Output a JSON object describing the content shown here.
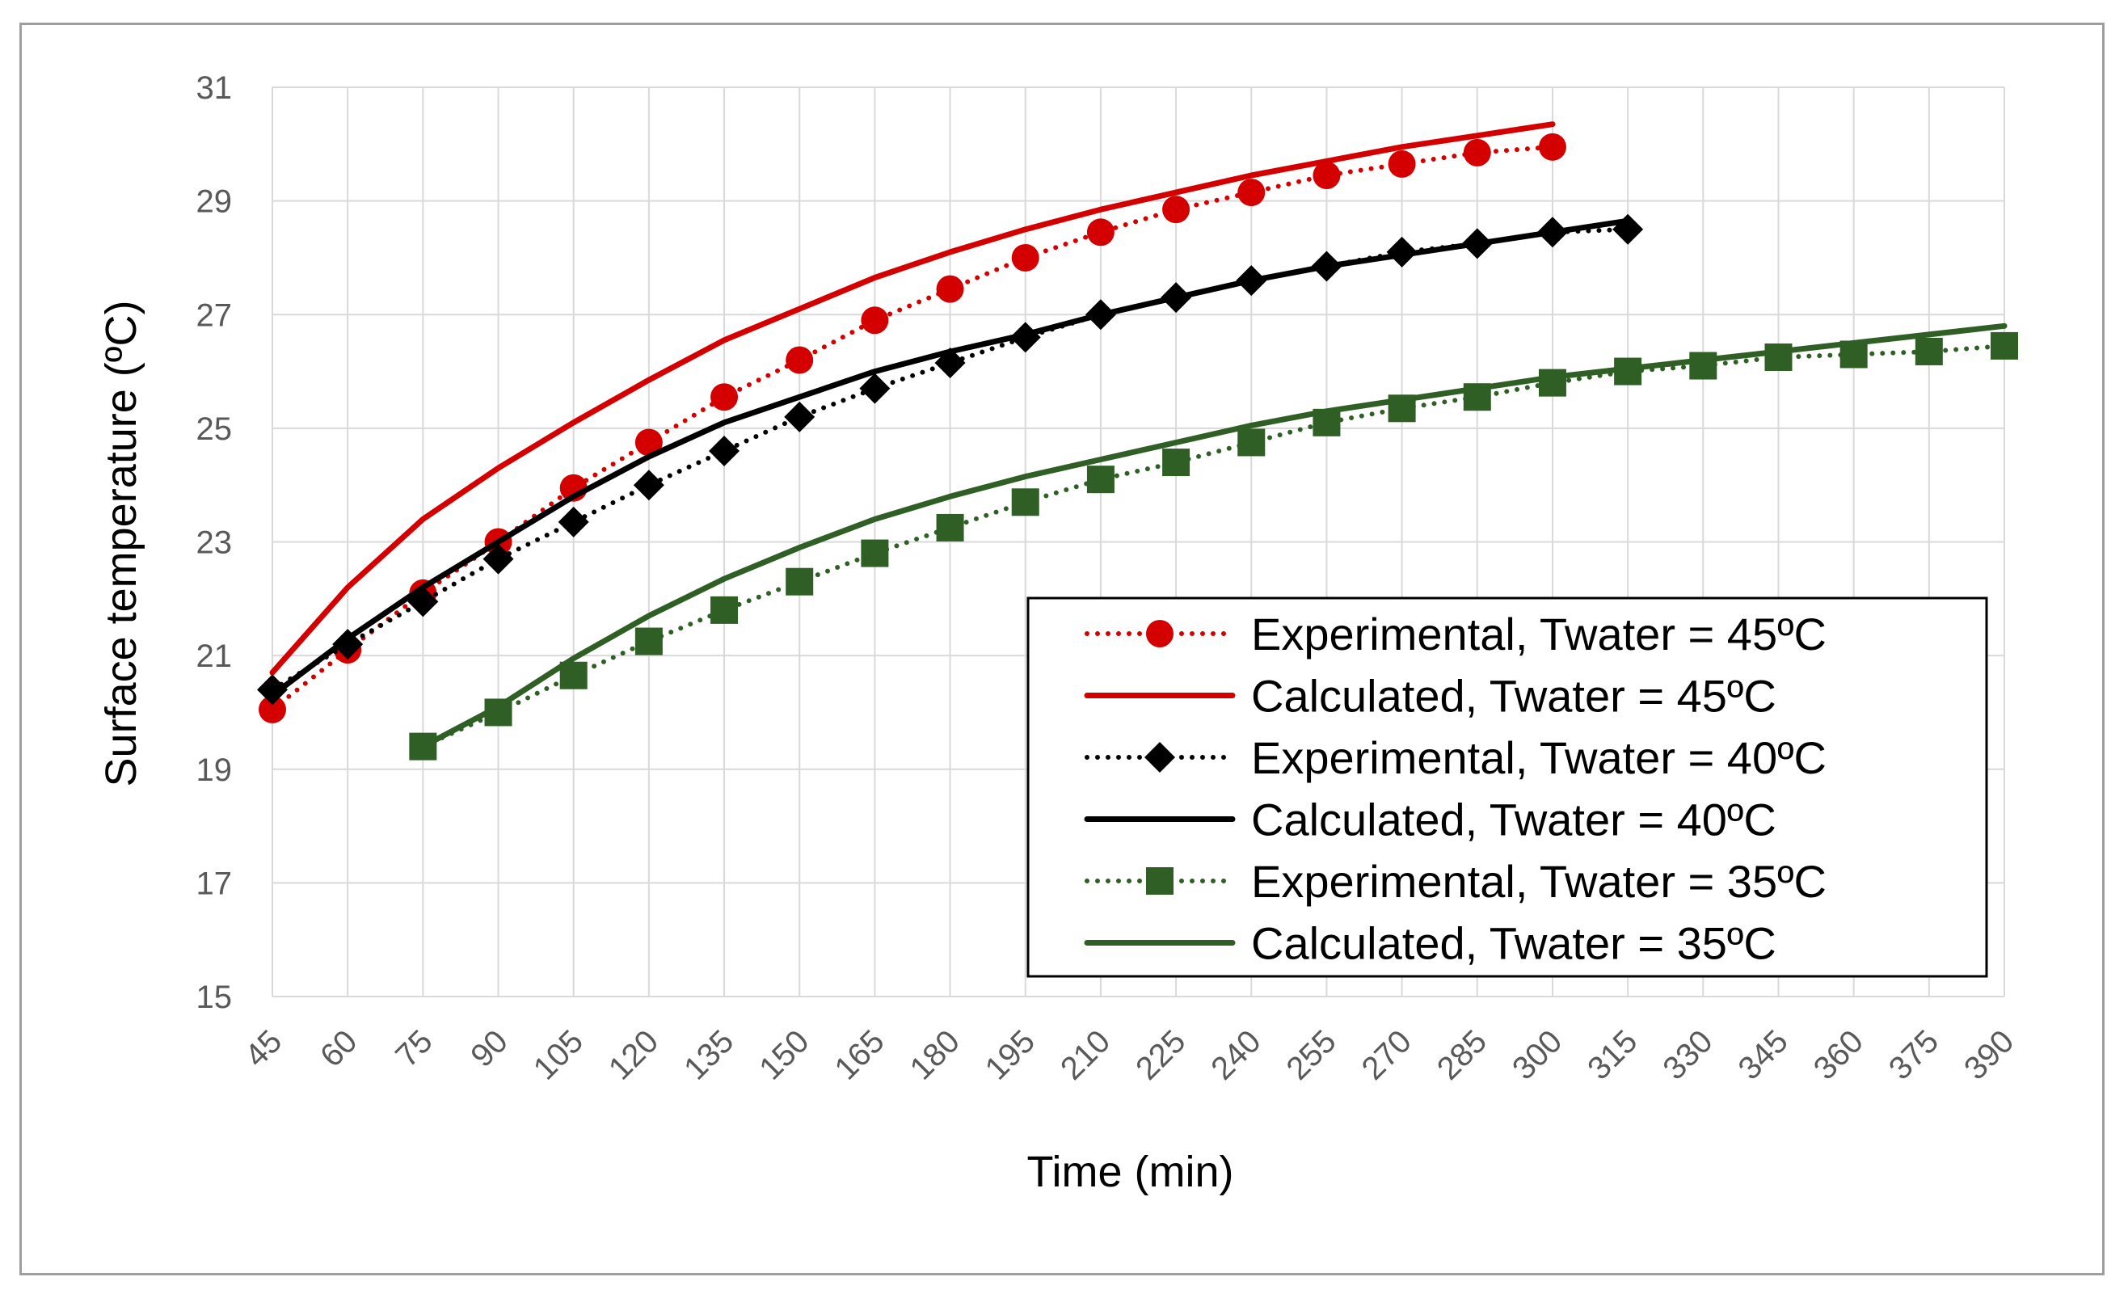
{
  "colors": {
    "red": "#d40000",
    "black": "#000000",
    "green": "#2f5f25",
    "grid": "#d9d9d9",
    "frame": "#9e9e9e"
  },
  "chart_data": {
    "type": "line",
    "title": "",
    "xlabel": "Time (min)",
    "ylabel": "Surface temperature (ºC)",
    "x_ticks": [
      45,
      60,
      75,
      90,
      105,
      120,
      135,
      150,
      165,
      180,
      195,
      210,
      225,
      240,
      255,
      270,
      285,
      300,
      315,
      330,
      345,
      360,
      375,
      390
    ],
    "y_ticks": [
      15,
      17,
      19,
      21,
      23,
      25,
      27,
      29,
      31
    ],
    "xlim": [
      45,
      390
    ],
    "ylim": [
      15,
      31
    ],
    "grid": true,
    "legend_position": "bottom-right",
    "series": [
      {
        "name": "Experimental, Twater = 45ºC",
        "style": "dotted",
        "marker": "circle",
        "color": "#d40000",
        "x": [
          45,
          60,
          75,
          90,
          105,
          120,
          135,
          150,
          165,
          180,
          195,
          210,
          225,
          240,
          255,
          270,
          285,
          300
        ],
        "y": [
          20.05,
          21.1,
          22.1,
          23.0,
          23.95,
          24.75,
          25.55,
          26.2,
          26.9,
          27.45,
          28.0,
          28.45,
          28.85,
          29.15,
          29.45,
          29.65,
          29.85,
          29.95
        ]
      },
      {
        "name": "Calculated, Twater = 45ºC",
        "style": "solid",
        "marker": "none",
        "color": "#d40000",
        "x": [
          45,
          60,
          75,
          90,
          105,
          120,
          135,
          150,
          165,
          180,
          195,
          210,
          225,
          240,
          255,
          270,
          285,
          300
        ],
        "y": [
          20.7,
          22.2,
          23.4,
          24.3,
          25.1,
          25.85,
          26.55,
          27.1,
          27.65,
          28.1,
          28.5,
          28.85,
          29.15,
          29.45,
          29.7,
          29.95,
          30.15,
          30.35
        ]
      },
      {
        "name": "Experimental, Twater = 40ºC",
        "style": "dotted",
        "marker": "diamond",
        "color": "#000000",
        "x": [
          45,
          60,
          75,
          90,
          105,
          120,
          135,
          150,
          165,
          180,
          195,
          210,
          225,
          240,
          255,
          270,
          285,
          300,
          315
        ],
        "y": [
          20.4,
          21.2,
          21.95,
          22.7,
          23.35,
          24.0,
          24.6,
          25.2,
          25.7,
          26.15,
          26.6,
          27.0,
          27.3,
          27.6,
          27.85,
          28.1,
          28.25,
          28.45,
          28.5
        ]
      },
      {
        "name": "Calculated, Twater = 40ºC",
        "style": "solid",
        "marker": "none",
        "color": "#000000",
        "x": [
          45,
          60,
          75,
          90,
          105,
          120,
          135,
          150,
          165,
          180,
          195,
          210,
          225,
          240,
          255,
          270,
          285,
          300,
          315
        ],
        "y": [
          20.3,
          21.3,
          22.2,
          23.0,
          23.8,
          24.5,
          25.1,
          25.55,
          26.0,
          26.35,
          26.65,
          27.0,
          27.3,
          27.6,
          27.85,
          28.05,
          28.25,
          28.45,
          28.65
        ]
      },
      {
        "name": "Experimental, Twater = 35ºC",
        "style": "dotted",
        "marker": "square",
        "color": "#2f5f25",
        "x": [
          75,
          90,
          105,
          120,
          135,
          150,
          165,
          180,
          195,
          210,
          225,
          240,
          255,
          270,
          285,
          300,
          315,
          330,
          345,
          360,
          375,
          390
        ],
        "y": [
          19.4,
          20.0,
          20.65,
          21.25,
          21.8,
          22.3,
          22.8,
          23.25,
          23.7,
          24.1,
          24.4,
          24.75,
          25.1,
          25.35,
          25.55,
          25.8,
          26.0,
          26.1,
          26.25,
          26.3,
          26.35,
          26.45
        ]
      },
      {
        "name": "Calculated, Twater = 35ºC",
        "style": "solid",
        "marker": "none",
        "color": "#2f5f25",
        "x": [
          75,
          90,
          105,
          120,
          135,
          150,
          165,
          180,
          195,
          210,
          225,
          240,
          255,
          270,
          285,
          300,
          315,
          330,
          345,
          360,
          375,
          390
        ],
        "y": [
          19.4,
          20.1,
          20.95,
          21.7,
          22.35,
          22.9,
          23.4,
          23.8,
          24.15,
          24.45,
          24.75,
          25.05,
          25.3,
          25.5,
          25.7,
          25.9,
          26.05,
          26.2,
          26.35,
          26.5,
          26.65,
          26.8
        ]
      }
    ]
  }
}
